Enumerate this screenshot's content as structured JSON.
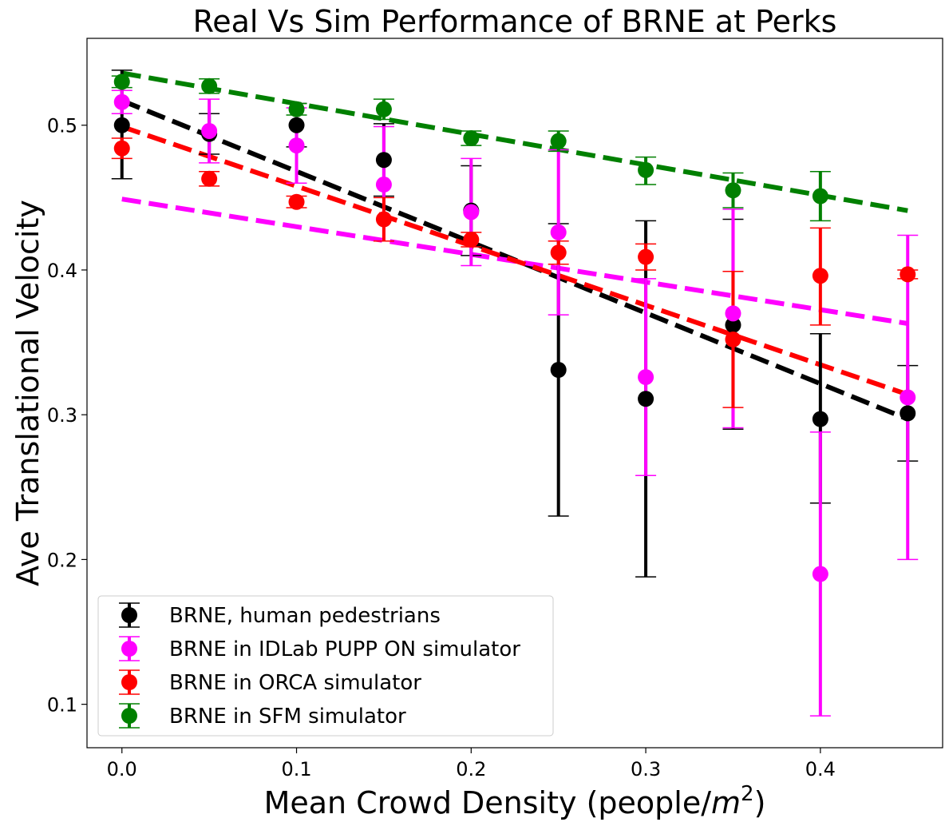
{
  "chart_data": {
    "type": "scatter",
    "title": "Real Vs Sim Performance of BRNE at Perks",
    "xlabel": "Mean Crowd Density (people/",
    "xlabel_unit_base": "m",
    "xlabel_unit_exp": "2",
    "xlabel_close": ")",
    "ylabel": "Ave Translational Velocity",
    "xlim": [
      -0.02,
      0.47
    ],
    "ylim": [
      0.07,
      0.56
    ],
    "xticks": [
      0.0,
      0.1,
      0.2,
      0.3,
      0.4
    ],
    "xtick_labels": [
      "0.0",
      "0.1",
      "0.2",
      "0.3",
      "0.4"
    ],
    "yticks": [
      0.1,
      0.2,
      0.3,
      0.4,
      0.5
    ],
    "ytick_labels": [
      "0.1",
      "0.2",
      "0.3",
      "0.4",
      "0.5"
    ],
    "grid": false,
    "legend_position": "lower-left",
    "x": [
      0.0,
      0.05,
      0.1,
      0.15,
      0.2,
      0.25,
      0.3,
      0.35,
      0.4,
      0.45
    ],
    "series": [
      {
        "name": "BRNE, human pedestrians",
        "color": "#000000",
        "y": [
          0.5,
          0.494,
          0.5,
          0.476,
          0.441,
          0.331,
          0.311,
          0.362,
          0.297,
          0.301
        ],
        "err_low": [
          0.463,
          0.48,
          0.485,
          0.451,
          0.41,
          0.23,
          0.188,
          0.29,
          0.239,
          0.268
        ],
        "err_high": [
          0.538,
          0.508,
          0.515,
          0.501,
          0.472,
          0.432,
          0.434,
          0.435,
          0.356,
          0.334
        ],
        "trend": [
          0.517,
          0.297
        ]
      },
      {
        "name": "BRNE in IDLab PUPP ON simulator",
        "color": "#ff00ff",
        "y": [
          0.516,
          0.496,
          0.486,
          0.459,
          0.44,
          0.426,
          0.326,
          0.37,
          0.19,
          0.312
        ],
        "err_low": [
          0.508,
          0.474,
          0.46,
          0.42,
          0.403,
          0.369,
          0.258,
          0.291,
          0.092,
          0.2
        ],
        "err_high": [
          0.524,
          0.518,
          0.512,
          0.499,
          0.477,
          0.483,
          0.394,
          0.442,
          0.288,
          0.424
        ],
        "trend": [
          0.449,
          0.363
        ]
      },
      {
        "name": "BRNE in ORCA simulator",
        "color": "#ff0000",
        "y": [
          0.484,
          0.463,
          0.447,
          0.435,
          0.421,
          0.412,
          0.409,
          0.352,
          0.396,
          0.397
        ],
        "err_low": [
          0.477,
          0.458,
          0.443,
          0.42,
          0.416,
          0.404,
          0.4,
          0.305,
          0.362,
          0.394
        ],
        "err_high": [
          0.491,
          0.468,
          0.451,
          0.45,
          0.426,
          0.42,
          0.418,
          0.399,
          0.429,
          0.4
        ],
        "trend": [
          0.499,
          0.314
        ]
      },
      {
        "name": "BRNE in SFM simulator",
        "color": "#008000",
        "y": [
          0.53,
          0.527,
          0.511,
          0.511,
          0.491,
          0.489,
          0.469,
          0.455,
          0.451,
          null
        ],
        "err_low": [
          0.526,
          0.522,
          0.507,
          0.504,
          0.486,
          0.482,
          0.459,
          0.443,
          0.434,
          null
        ],
        "err_high": [
          0.534,
          0.532,
          0.515,
          0.518,
          0.496,
          0.496,
          0.478,
          0.467,
          0.468,
          null
        ],
        "trend": [
          0.536,
          0.441
        ]
      }
    ]
  }
}
